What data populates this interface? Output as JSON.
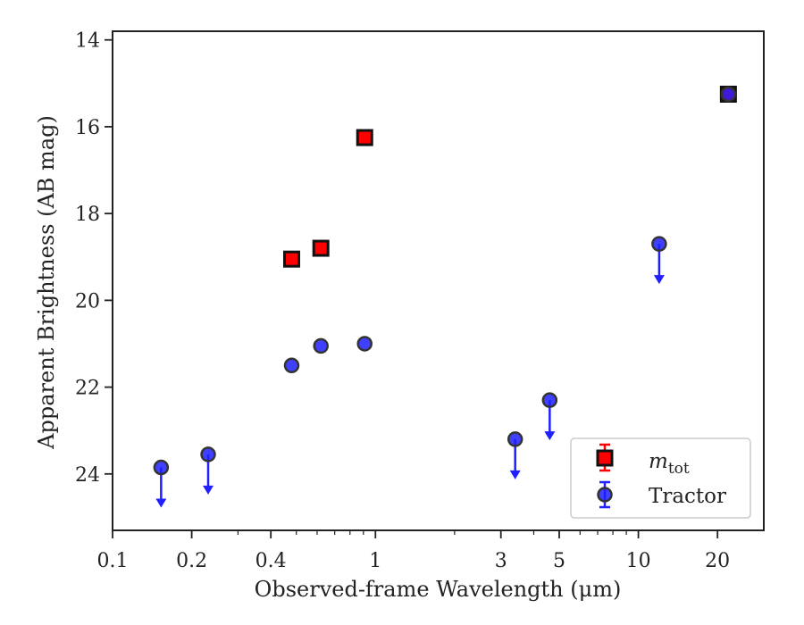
{
  "chart_data": {
    "type": "scatter",
    "xlabel": "Observed-frame Wavelength (μm)",
    "ylabel": "Apparent Brightness (AB mag)",
    "xscale": "log",
    "xlim": [
      0.1,
      30
    ],
    "ylim": [
      25.3,
      13.8
    ],
    "y_inverted": true,
    "x_ticks": [
      0.1,
      0.2,
      0.4,
      1,
      3,
      5,
      10,
      20
    ],
    "x_tick_labels": [
      "0.1",
      "0.2",
      "0.4",
      "1",
      "3",
      "5",
      "10",
      "20"
    ],
    "y_ticks": [
      14,
      16,
      18,
      20,
      22,
      24
    ],
    "y_tick_labels": [
      "14",
      "16",
      "18",
      "20",
      "22",
      "24"
    ],
    "grid": false,
    "legend_position": "lower-right",
    "series": [
      {
        "name": "m_tot",
        "legend_label_main": "m",
        "legend_label_sub": "tot",
        "marker": "square",
        "color": "#ff0000",
        "edge_color": "#111111",
        "points": [
          {
            "x": 0.48,
            "y": 19.05
          },
          {
            "x": 0.62,
            "y": 18.8
          },
          {
            "x": 0.91,
            "y": 16.25
          },
          {
            "x": 22.0,
            "y": 15.25
          }
        ]
      },
      {
        "name": "Tractor",
        "legend_label_main": "Tractor",
        "marker": "circle",
        "color": "#1f1fff",
        "edge_color": "#333333",
        "points": [
          {
            "x": 0.153,
            "y": 23.85,
            "upper_limit": true
          },
          {
            "x": 0.231,
            "y": 23.55,
            "upper_limit": true
          },
          {
            "x": 0.48,
            "y": 21.5
          },
          {
            "x": 0.62,
            "y": 21.05
          },
          {
            "x": 0.91,
            "y": 21.0
          },
          {
            "x": 3.4,
            "y": 23.2,
            "upper_limit": true
          },
          {
            "x": 4.6,
            "y": 22.3,
            "upper_limit": true
          },
          {
            "x": 12.0,
            "y": 18.7,
            "upper_limit": true
          },
          {
            "x": 22.0,
            "y": 15.25
          }
        ]
      }
    ]
  }
}
